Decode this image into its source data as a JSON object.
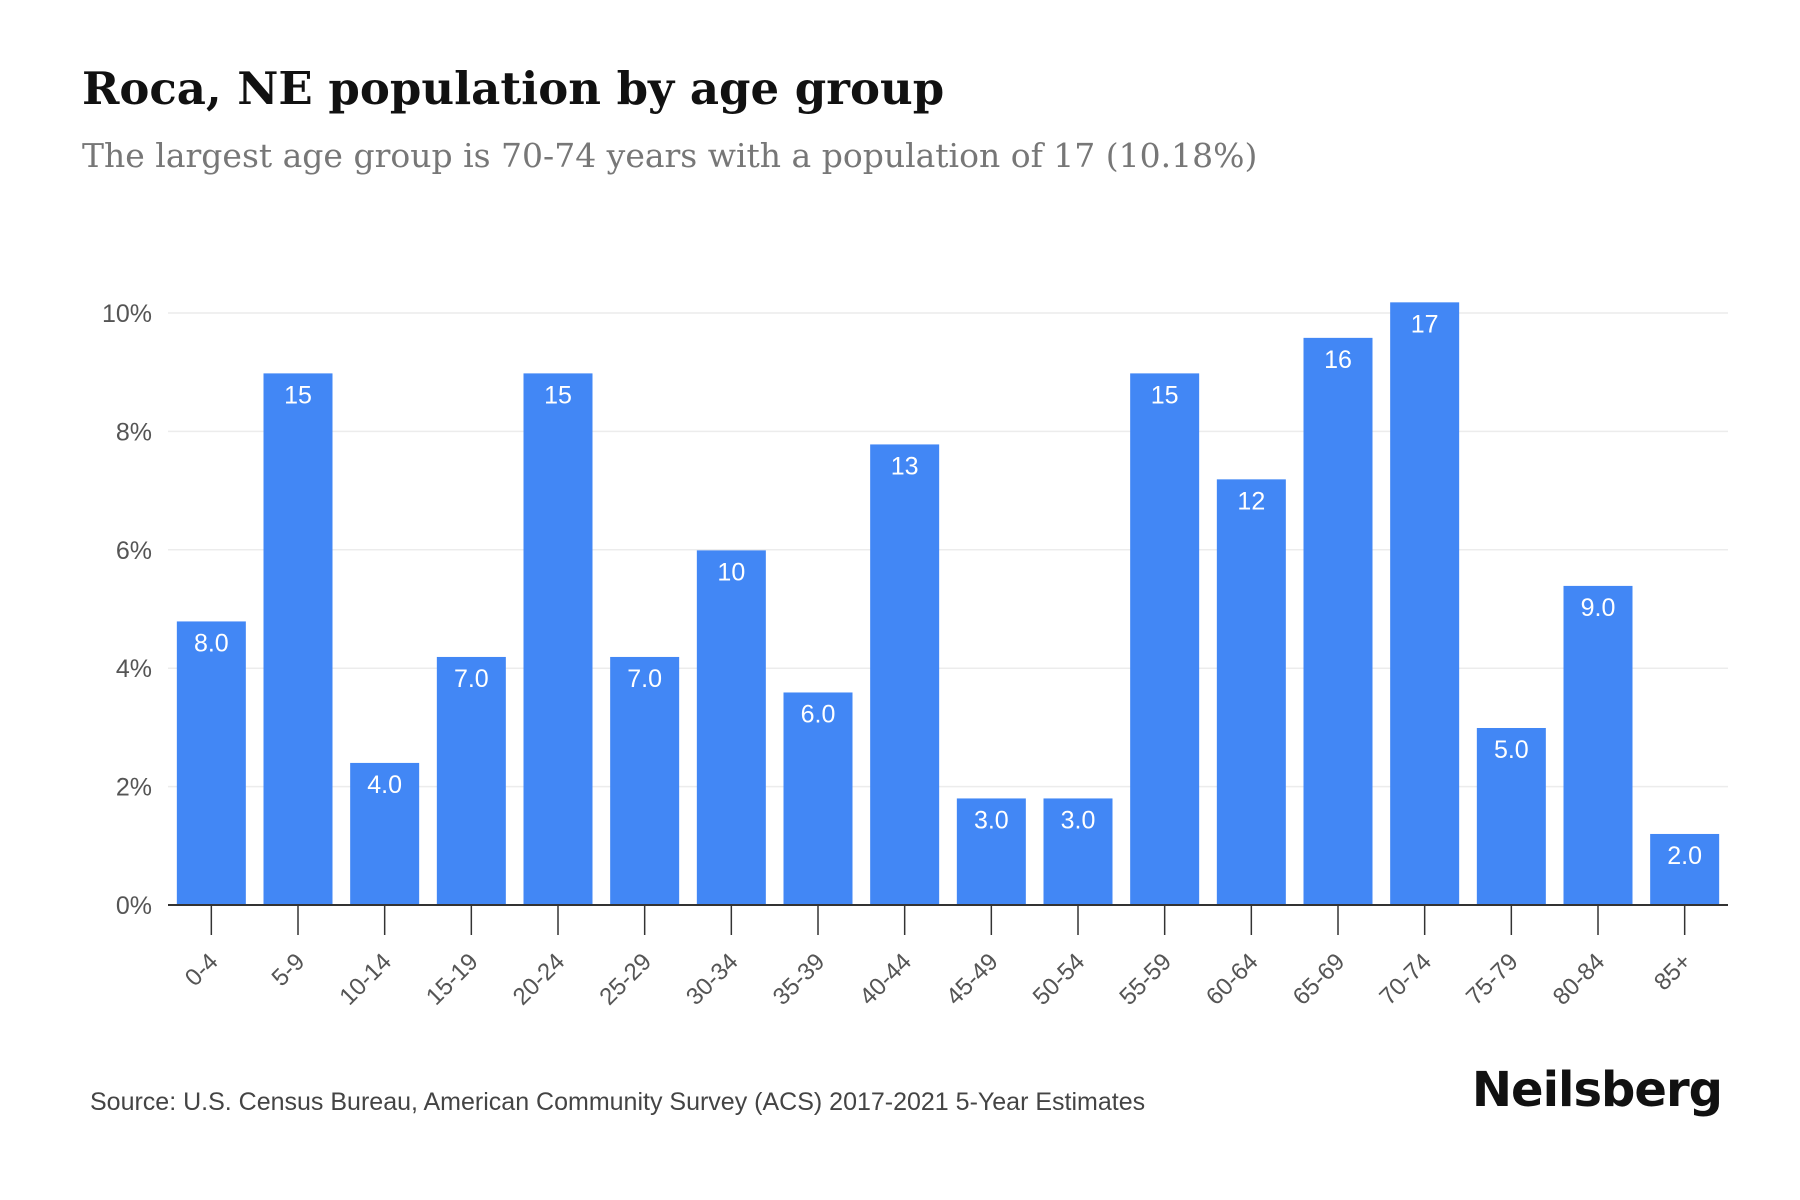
{
  "header": {
    "title": "Roca, NE population by age group",
    "subtitle": "The largest age group is 70-74 years with a population of 17 (10.18%)"
  },
  "footer": {
    "source": "Source: U.S. Census Bureau, American Community Survey (ACS) 2017-2021 5-Year Estimates",
    "brand": "Neilsberg"
  },
  "colors": {
    "bar": "#4287f5",
    "bar_label": "#ffffff",
    "grid": "#ececec",
    "axis": "#333333",
    "tick_text": "#555555"
  },
  "chart_data": {
    "type": "bar",
    "categories": [
      "0-4",
      "5-9",
      "10-14",
      "15-19",
      "20-24",
      "25-29",
      "30-34",
      "35-39",
      "40-44",
      "45-49",
      "50-54",
      "55-59",
      "60-64",
      "65-69",
      "70-74",
      "75-79",
      "80-84",
      "85+"
    ],
    "series": [
      {
        "values": [
          4.79,
          8.98,
          2.4,
          4.19,
          8.98,
          4.19,
          5.99,
          3.59,
          7.78,
          1.8,
          1.8,
          8.98,
          7.19,
          9.58,
          10.18,
          2.99,
          5.39,
          1.2
        ],
        "data_labels": [
          "8.0",
          "15",
          "4.0",
          "7.0",
          "15",
          "7.0",
          "10",
          "6.0",
          "13",
          "3.0",
          "3.0",
          "15",
          "12",
          "16",
          "17",
          "5.0",
          "9.0",
          "2.0"
        ]
      }
    ],
    "ylim": [
      0,
      10.5
    ],
    "yticks": [
      0,
      2,
      4,
      6,
      8,
      10
    ],
    "ytick_labels": [
      "0%",
      "2%",
      "4%",
      "6%",
      "8%",
      "10%"
    ],
    "grid": true,
    "legend": "none"
  }
}
